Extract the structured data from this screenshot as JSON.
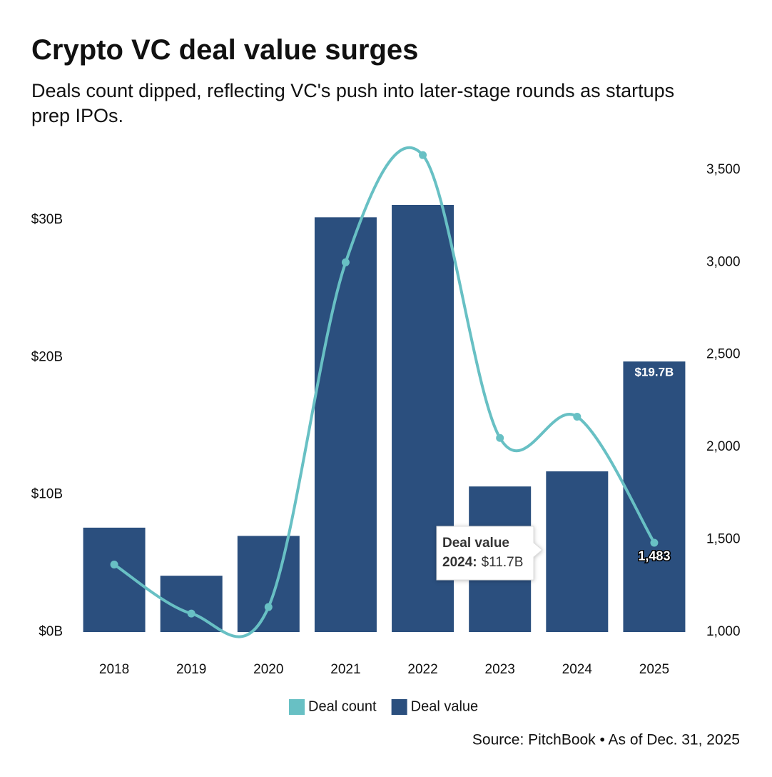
{
  "chart_data": {
    "type": "bar-line",
    "title": "Crypto VC deal value surges",
    "subtitle": "Deals count dipped, reflecting VC's push into later-stage rounds as startups prep IPOs.",
    "categories": [
      "2018",
      "2019",
      "2020",
      "2021",
      "2022",
      "2023",
      "2024",
      "2025"
    ],
    "series": [
      {
        "name": "Deal count",
        "type": "line",
        "axis": "y2",
        "color": "#68c0c4",
        "values": [
          1365,
          1100,
          1135,
          3000,
          3580,
          2050,
          2165,
          1483
        ],
        "value_labels": [
          null,
          null,
          null,
          null,
          null,
          null,
          null,
          "1,483"
        ]
      },
      {
        "name": "Deal value",
        "type": "bar",
        "color": "#2b4f7e",
        "values": [
          7.6,
          4.1,
          7.0,
          30.2,
          31.1,
          10.6,
          11.7,
          19.7
        ],
        "value_labels": [
          null,
          null,
          null,
          null,
          null,
          null,
          null,
          "$19.7B"
        ]
      }
    ],
    "ylim": [
      0,
      35
    ],
    "yticks": [
      {
        "value": 0,
        "label": "$0B"
      },
      {
        "value": 10,
        "label": "$10B"
      },
      {
        "value": 20,
        "label": "$20B"
      },
      {
        "value": 30,
        "label": "$30B"
      }
    ],
    "y2lim": [
      1000,
      3600
    ],
    "y2ticks": [
      {
        "value": 1000,
        "label": "1,000"
      },
      {
        "value": 1500,
        "label": "1,500"
      },
      {
        "value": 2000,
        "label": "2,000"
      },
      {
        "value": 2500,
        "label": "2,500"
      },
      {
        "value": 3000,
        "label": "3,000"
      },
      {
        "value": 3500,
        "label": "3,500"
      }
    ],
    "grid": false,
    "legend": "bottom",
    "tooltip": {
      "title": "Deal value",
      "label": "2024:",
      "value": "$11.7B"
    },
    "source": "Source: PitchBook • As of Dec. 31, 2025"
  }
}
